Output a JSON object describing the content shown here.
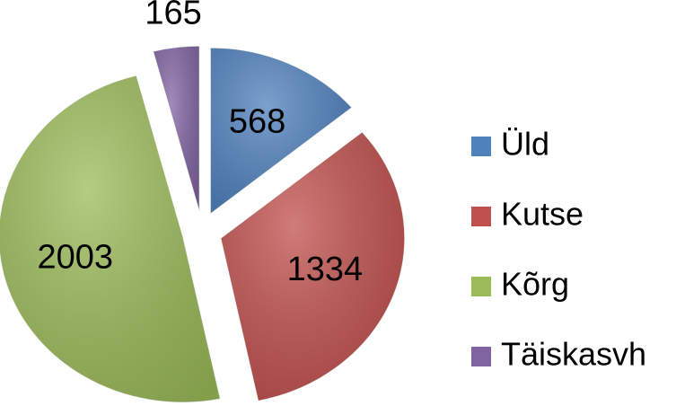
{
  "chart_data": {
    "type": "pie",
    "categories": [
      "Üld",
      "Kutse",
      "Kõrg",
      "Täiskasvh"
    ],
    "values": [
      568,
      1334,
      2003,
      165
    ],
    "colors": [
      "#4f81bd",
      "#c0504d",
      "#9bbb59",
      "#8064a2"
    ],
    "legend": "right"
  }
}
